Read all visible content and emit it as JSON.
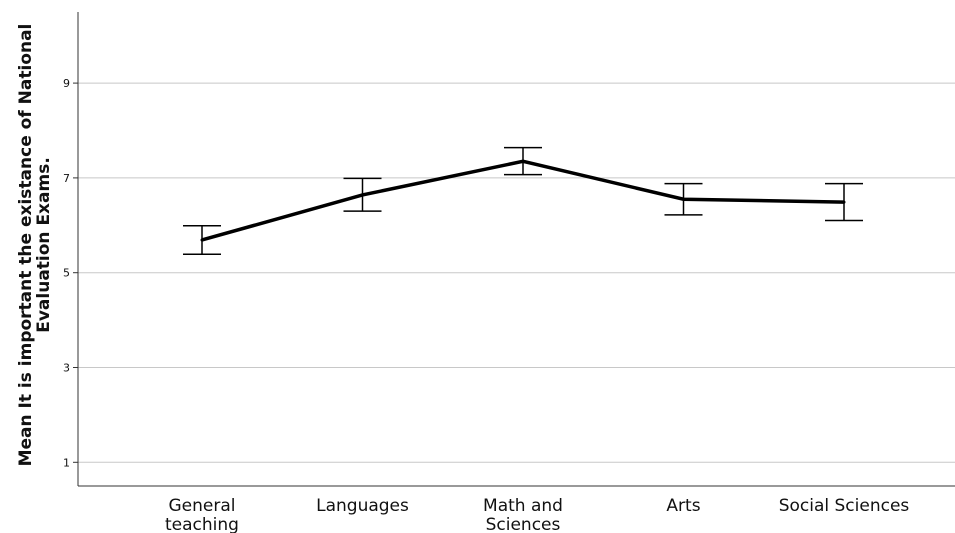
{
  "chart_data": {
    "type": "line",
    "categories": [
      "General teaching",
      "Languages",
      "Math and Sciences",
      "Arts",
      "Social Sciences"
    ],
    "category_lines": [
      [
        "General",
        "teaching"
      ],
      [
        "Languages"
      ],
      [
        "Math and",
        "Sciences"
      ],
      [
        "Arts"
      ],
      [
        "Social Sciences"
      ]
    ],
    "series": [
      {
        "values": [
          5.69,
          6.64,
          7.35,
          6.55,
          6.49
        ],
        "error_low": [
          5.39,
          6.3,
          7.07,
          6.22,
          6.1
        ],
        "error_high": [
          5.99,
          6.99,
          7.64,
          6.88,
          6.88
        ]
      }
    ],
    "ylabel": "Mean It is important the existance of National Evaluation Exams.",
    "yticks": [
      1,
      3,
      5,
      7,
      9
    ],
    "ylim": [
      0.5,
      10.5
    ],
    "grid": true,
    "colors": {
      "line": "#000000",
      "grid": "#c8c8c8",
      "axis": "#333333"
    }
  }
}
